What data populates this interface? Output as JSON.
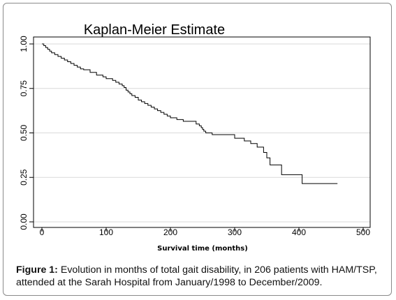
{
  "chart_data": {
    "type": "line",
    "title": "Kaplan-Meier Estimate",
    "xlabel": "Survival time (months)",
    "ylabel": "",
    "xlim": [
      0,
      500
    ],
    "ylim": [
      0,
      1
    ],
    "x_ticks": [
      "0",
      "100",
      "200",
      "300",
      "400",
      "500"
    ],
    "y_ticks": [
      "0.00",
      "0.25",
      "0.50",
      "0.75",
      "1.00"
    ],
    "grid": true,
    "series": [
      {
        "name": "",
        "color": "#000000",
        "step": true,
        "x": [
          0,
          3,
          6,
          9,
          12,
          15,
          20,
          25,
          30,
          35,
          40,
          45,
          50,
          55,
          60,
          65,
          75,
          85,
          95,
          100,
          110,
          115,
          120,
          125,
          128,
          131,
          134,
          137,
          140,
          145,
          150,
          155,
          160,
          165,
          170,
          175,
          180,
          185,
          190,
          195,
          200,
          210,
          220,
          240,
          245,
          248,
          250,
          252,
          255,
          265,
          300,
          315,
          325,
          335,
          345,
          350,
          355,
          373,
          405,
          460
        ],
        "y": [
          1.0,
          0.99,
          0.98,
          0.97,
          0.96,
          0.95,
          0.94,
          0.93,
          0.92,
          0.91,
          0.9,
          0.89,
          0.88,
          0.87,
          0.86,
          0.855,
          0.84,
          0.825,
          0.815,
          0.805,
          0.795,
          0.785,
          0.775,
          0.765,
          0.755,
          0.74,
          0.73,
          0.72,
          0.71,
          0.7,
          0.685,
          0.675,
          0.665,
          0.655,
          0.645,
          0.635,
          0.625,
          0.615,
          0.605,
          0.595,
          0.585,
          0.575,
          0.565,
          0.55,
          0.54,
          0.53,
          0.52,
          0.51,
          0.5,
          0.49,
          0.47,
          0.455,
          0.44,
          0.42,
          0.39,
          0.36,
          0.32,
          0.265,
          0.215,
          0.215
        ]
      }
    ]
  },
  "caption": {
    "label": "Figure 1:",
    "text": " Evolution in months of total gait disability, in 206 patients with HAM/TSP, attended at the Sarah Hospital from January/1998 to December/2009."
  }
}
